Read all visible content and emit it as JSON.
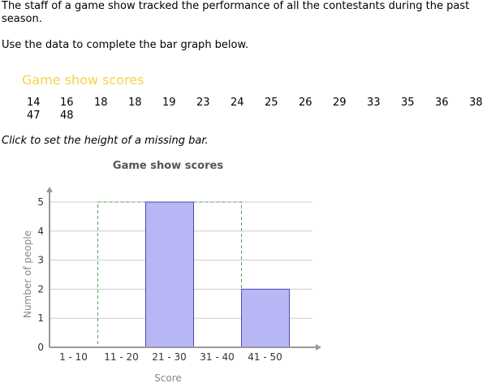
{
  "question": {
    "intro": "The staff of a game show tracked the performance of all the contestants during the past season.",
    "instruction": "Use the data to complete the bar graph below.",
    "data_title": "Game show scores",
    "scores": [
      "14",
      "16",
      "18",
      "18",
      "19",
      "23",
      "24",
      "25",
      "26",
      "29",
      "33",
      "35",
      "36",
      "38",
      "47",
      "48"
    ],
    "hint": "Click to set the height of a missing bar."
  },
  "chart_data": {
    "type": "bar",
    "title": "Game show scores",
    "xlabel": "Score",
    "ylabel": "Number of people",
    "categories": [
      "1 - 10",
      "11 - 20",
      "21 - 30",
      "31 - 40",
      "41 - 50"
    ],
    "values": [
      0,
      null,
      5,
      null,
      2
    ],
    "missing": [
      "11 - 20",
      "31 - 40"
    ],
    "yticks": [
      "0",
      "1",
      "2",
      "3",
      "4",
      "5"
    ],
    "ylim": [
      0,
      5
    ],
    "grid": true,
    "colors": {
      "bar": "#b7b7f5",
      "bar_stroke": "#4a4ab4",
      "placeholder": "#5aa55a",
      "grid": "#cccccc",
      "axis": "#999999"
    }
  }
}
